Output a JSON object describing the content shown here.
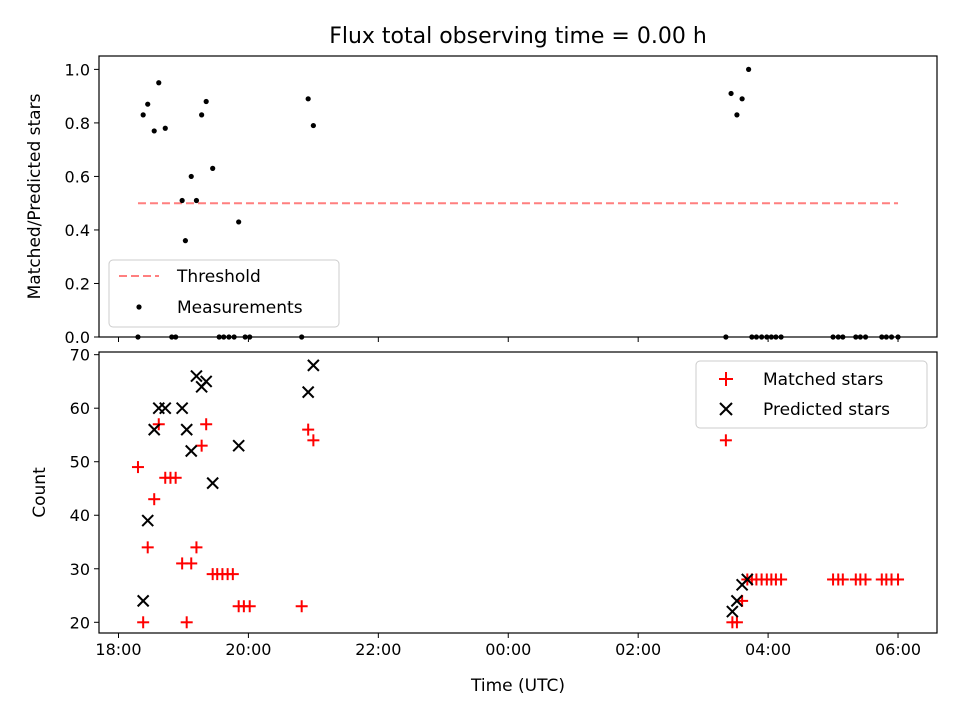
{
  "colors": {
    "threshold": "#ff7f7f",
    "measurement": "#000000",
    "matched": "#ff0000",
    "predicted": "#000000"
  },
  "chart_data": [
    {
      "type": "scatter",
      "title": "Flux total observing time = 0.00 h",
      "xlabel": "",
      "ylabel": "Matched/Predicted stars",
      "x_unit": "hours since 18:00 UTC",
      "xlim": [
        -0.3,
        12.6
      ],
      "ylim": [
        0.0,
        1.05
      ],
      "x_ticks": [
        0,
        2,
        4,
        6,
        8,
        10,
        12
      ],
      "x_tick_labels": [],
      "y_ticks": [
        0.0,
        0.2,
        0.4,
        0.6,
        0.8,
        1.0
      ],
      "y_tick_labels": [
        "0.0",
        "0.2",
        "0.4",
        "0.6",
        "0.8",
        "1.0"
      ],
      "legend": {
        "position": "lower-left",
        "entries": [
          "Threshold",
          "Measurements"
        ]
      },
      "series": [
        {
          "name": "Threshold",
          "kind": "dashed-line",
          "points": [
            [
              0.3,
              0.5
            ],
            [
              12.0,
              0.5
            ]
          ]
        },
        {
          "name": "Measurements",
          "kind": "dot",
          "points": [
            [
              0.3,
              0.0
            ],
            [
              0.38,
              0.83
            ],
            [
              0.45,
              0.87
            ],
            [
              0.55,
              0.77
            ],
            [
              0.62,
              0.95
            ],
            [
              0.72,
              0.78
            ],
            [
              0.82,
              0.0
            ],
            [
              0.88,
              0.0
            ],
            [
              0.98,
              0.51
            ],
            [
              1.03,
              0.36
            ],
            [
              1.12,
              0.6
            ],
            [
              1.2,
              0.51
            ],
            [
              1.28,
              0.83
            ],
            [
              1.35,
              0.88
            ],
            [
              1.45,
              0.63
            ],
            [
              1.55,
              0.0
            ],
            [
              1.62,
              0.0
            ],
            [
              1.7,
              0.0
            ],
            [
              1.78,
              0.0
            ],
            [
              1.85,
              0.43
            ],
            [
              1.95,
              0.0
            ],
            [
              2.02,
              0.0
            ],
            [
              2.82,
              0.0
            ],
            [
              2.92,
              0.89
            ],
            [
              3.0,
              0.79
            ],
            [
              9.35,
              0.0
            ],
            [
              9.43,
              0.91
            ],
            [
              9.52,
              0.83
            ],
            [
              9.6,
              0.89
            ],
            [
              9.7,
              1.0
            ],
            [
              9.75,
              0.0
            ],
            [
              9.82,
              0.0
            ],
            [
              9.9,
              0.0
            ],
            [
              9.98,
              0.0
            ],
            [
              10.05,
              0.0
            ],
            [
              10.12,
              0.0
            ],
            [
              10.2,
              0.0
            ],
            [
              11.0,
              0.0
            ],
            [
              11.08,
              0.0
            ],
            [
              11.15,
              0.0
            ],
            [
              11.35,
              0.0
            ],
            [
              11.42,
              0.0
            ],
            [
              11.5,
              0.0
            ],
            [
              11.75,
              0.0
            ],
            [
              11.82,
              0.0
            ],
            [
              11.9,
              0.0
            ],
            [
              12.0,
              0.0
            ]
          ]
        }
      ]
    },
    {
      "type": "scatter",
      "title": "",
      "xlabel": "Time (UTC)",
      "ylabel": "Count",
      "x_unit": "hours since 18:00 UTC",
      "xlim": [
        -0.3,
        12.6
      ],
      "ylim": [
        18.0,
        70.5
      ],
      "x_ticks": [
        0,
        2,
        4,
        6,
        8,
        10,
        12
      ],
      "x_tick_labels": [
        "18:00",
        "20:00",
        "22:00",
        "00:00",
        "02:00",
        "04:00",
        "06:00"
      ],
      "y_ticks": [
        20,
        30,
        40,
        50,
        60,
        70
      ],
      "y_tick_labels": [
        "20",
        "30",
        "40",
        "50",
        "60",
        "70"
      ],
      "legend": {
        "position": "top-right",
        "entries": [
          "Matched stars",
          "Predicted stars"
        ]
      },
      "series": [
        {
          "name": "Matched stars",
          "kind": "plus",
          "points": [
            [
              0.3,
              49
            ],
            [
              0.38,
              20
            ],
            [
              0.45,
              34
            ],
            [
              0.55,
              43
            ],
            [
              0.62,
              57
            ],
            [
              0.72,
              47
            ],
            [
              0.8,
              47
            ],
            [
              0.88,
              47
            ],
            [
              0.98,
              31
            ],
            [
              1.05,
              20
            ],
            [
              1.12,
              31
            ],
            [
              1.2,
              34
            ],
            [
              1.28,
              53
            ],
            [
              1.35,
              57
            ],
            [
              1.45,
              29
            ],
            [
              1.52,
              29
            ],
            [
              1.6,
              29
            ],
            [
              1.68,
              29
            ],
            [
              1.76,
              29
            ],
            [
              1.85,
              23
            ],
            [
              1.93,
              23
            ],
            [
              2.02,
              23
            ],
            [
              2.82,
              23
            ],
            [
              2.92,
              56
            ],
            [
              3.0,
              54
            ],
            [
              9.35,
              54
            ],
            [
              9.45,
              20
            ],
            [
              9.52,
              20
            ],
            [
              9.6,
              24
            ],
            [
              9.68,
              28
            ],
            [
              9.75,
              28
            ],
            [
              9.82,
              28
            ],
            [
              9.9,
              28
            ],
            [
              9.98,
              28
            ],
            [
              10.05,
              28
            ],
            [
              10.12,
              28
            ],
            [
              10.2,
              28
            ],
            [
              11.0,
              28
            ],
            [
              11.08,
              28
            ],
            [
              11.15,
              28
            ],
            [
              11.35,
              28
            ],
            [
              11.42,
              28
            ],
            [
              11.5,
              28
            ],
            [
              11.75,
              28
            ],
            [
              11.82,
              28
            ],
            [
              11.9,
              28
            ],
            [
              12.0,
              28
            ]
          ]
        },
        {
          "name": "Predicted stars",
          "kind": "x",
          "points": [
            [
              0.38,
              24
            ],
            [
              0.45,
              39
            ],
            [
              0.55,
              56
            ],
            [
              0.62,
              60
            ],
            [
              0.72,
              60
            ],
            [
              0.98,
              60
            ],
            [
              1.05,
              56
            ],
            [
              1.12,
              52
            ],
            [
              1.2,
              66
            ],
            [
              1.28,
              64
            ],
            [
              1.35,
              65
            ],
            [
              1.45,
              46
            ],
            [
              1.85,
              53
            ],
            [
              2.92,
              63
            ],
            [
              3.0,
              68
            ],
            [
              9.45,
              22
            ],
            [
              9.52,
              24
            ],
            [
              9.6,
              27
            ],
            [
              9.68,
              28
            ]
          ]
        }
      ]
    }
  ]
}
